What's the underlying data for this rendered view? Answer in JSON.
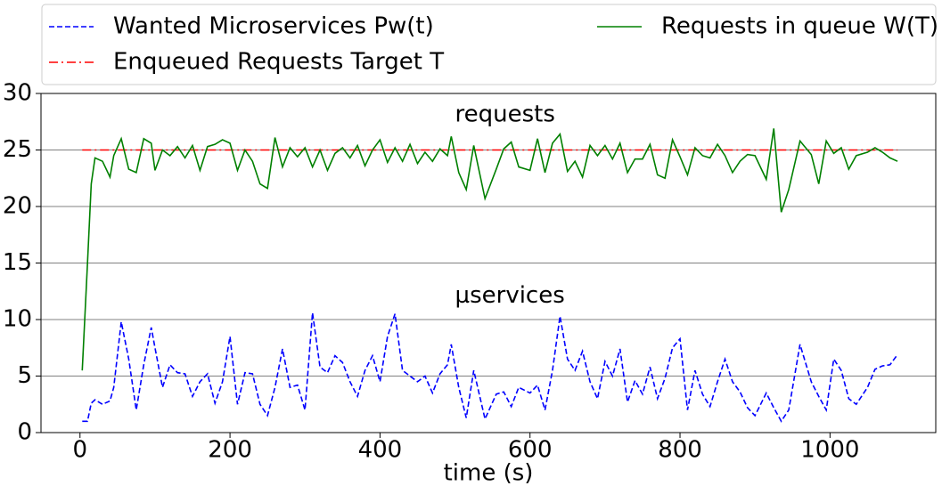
{
  "chart_data": {
    "type": "line",
    "xlabel": "time (s)",
    "annotations": [
      {
        "text": "requests",
        "x": 500,
        "y": 27
      },
      {
        "text": "µservices",
        "x": 500,
        "y": 11
      }
    ],
    "x": [
      3,
      10,
      15,
      20,
      30,
      40,
      45,
      55,
      65,
      75,
      85,
      95,
      100,
      110,
      120,
      130,
      140,
      150,
      160,
      170,
      180,
      190,
      200,
      210,
      220,
      230,
      240,
      250,
      260,
      270,
      280,
      290,
      300,
      310,
      320,
      330,
      340,
      350,
      360,
      370,
      380,
      390,
      400,
      410,
      420,
      430,
      440,
      450,
      460,
      470,
      480,
      490,
      495,
      505,
      515,
      525,
      540,
      555,
      565,
      575,
      585,
      600,
      610,
      620,
      630,
      640,
      650,
      660,
      670,
      680,
      690,
      700,
      710,
      720,
      730,
      740,
      750,
      760,
      770,
      780,
      790,
      800,
      810,
      820,
      830,
      840,
      850,
      860,
      870,
      880,
      890,
      900,
      915,
      925,
      935,
      945,
      960,
      975,
      985,
      995,
      1005,
      1015,
      1025,
      1035,
      1050,
      1060,
      1070,
      1080,
      1090
    ],
    "series": [
      {
        "name": "Wanted Microservices Pw(t)",
        "color": "#0000ff",
        "dash": "dashed",
        "values": [
          1,
          1,
          2.6,
          2.9,
          2.5,
          2.8,
          4,
          9.8,
          6.5,
          2,
          6,
          9.3,
          7.5,
          4,
          6,
          5.3,
          5.2,
          3.2,
          4.5,
          5.2,
          2.6,
          4.5,
          8.5,
          2.5,
          5.3,
          5.2,
          2.5,
          1.5,
          4,
          7.4,
          4,
          4.2,
          2,
          10.6,
          5.8,
          5.3,
          6.8,
          6.2,
          4.5,
          3.2,
          5.5,
          6.8,
          4.5,
          8.5,
          10.5,
          5.5,
          5,
          4.5,
          5,
          3.5,
          5.2,
          6,
          7.8,
          4,
          1.3,
          5.5,
          1.2,
          3.4,
          3.6,
          2.3,
          4,
          3.5,
          4.2,
          2,
          5.5,
          10.3,
          6.5,
          5.5,
          7.2,
          4.5,
          3,
          6.3,
          5,
          7.4,
          2.7,
          4.6,
          3.4,
          5.8,
          3,
          4.8,
          7.5,
          8.3,
          2,
          5.5,
          3.4,
          2.3,
          4.5,
          6.5,
          4.5,
          3.6,
          2.2,
          1.5,
          3.5,
          2.2,
          1,
          2,
          7.8,
          4.5,
          3.2,
          2,
          6.5,
          5.5,
          3,
          2.5,
          4,
          5.6,
          5.9,
          6,
          6.9
        ]
      },
      {
        "name": "Enqueued Requests Target T",
        "color": "#ff0000",
        "dash": "dashdot",
        "x": [
          3,
          1090
        ],
        "values": [
          25,
          25
        ]
      },
      {
        "name": "Requests in queue W(T)",
        "color": "#008000",
        "dash": "solid",
        "values": [
          5.5,
          15,
          22,
          24.3,
          24,
          22.6,
          24.5,
          26,
          23.3,
          23,
          26,
          25.6,
          23.2,
          25,
          24.5,
          25.3,
          24.3,
          25.4,
          23.2,
          25.3,
          25.5,
          25.9,
          25.6,
          23.2,
          25,
          24,
          22,
          21.6,
          26.1,
          23.5,
          25.2,
          24.4,
          25.2,
          23.5,
          25,
          23.2,
          24.7,
          25.2,
          24.3,
          25.4,
          23.6,
          25,
          25.9,
          23.9,
          25.2,
          24,
          25.5,
          23.8,
          24.8,
          24,
          25.1,
          24.5,
          26.2,
          23,
          21.5,
          25.4,
          20.7,
          23.3,
          25.1,
          25.7,
          23.5,
          23.2,
          26,
          23,
          25.6,
          26.4,
          23.1,
          24,
          22.6,
          25.4,
          24.5,
          25.4,
          24.2,
          25.6,
          23,
          24.2,
          24.2,
          25.5,
          22.8,
          22.5,
          25.9,
          24.4,
          22.8,
          25.2,
          24.5,
          24.3,
          25.5,
          24.5,
          23,
          24,
          24.6,
          24.5,
          22.4,
          26.9,
          19.5,
          21.5,
          25.8,
          24.6,
          22,
          25.8,
          24.7,
          25.2,
          23.3,
          24.5,
          24.8,
          25.2,
          24.8,
          24.3,
          24
        ]
      }
    ],
    "xlim": [
      -52,
      1141
    ],
    "xticks": [
      0,
      200,
      400,
      600,
      800,
      1000
    ],
    "ylim": [
      0,
      30
    ],
    "yticks": [
      0,
      5,
      10,
      15,
      20,
      25,
      30
    ],
    "grid": "y",
    "legend": "top"
  }
}
